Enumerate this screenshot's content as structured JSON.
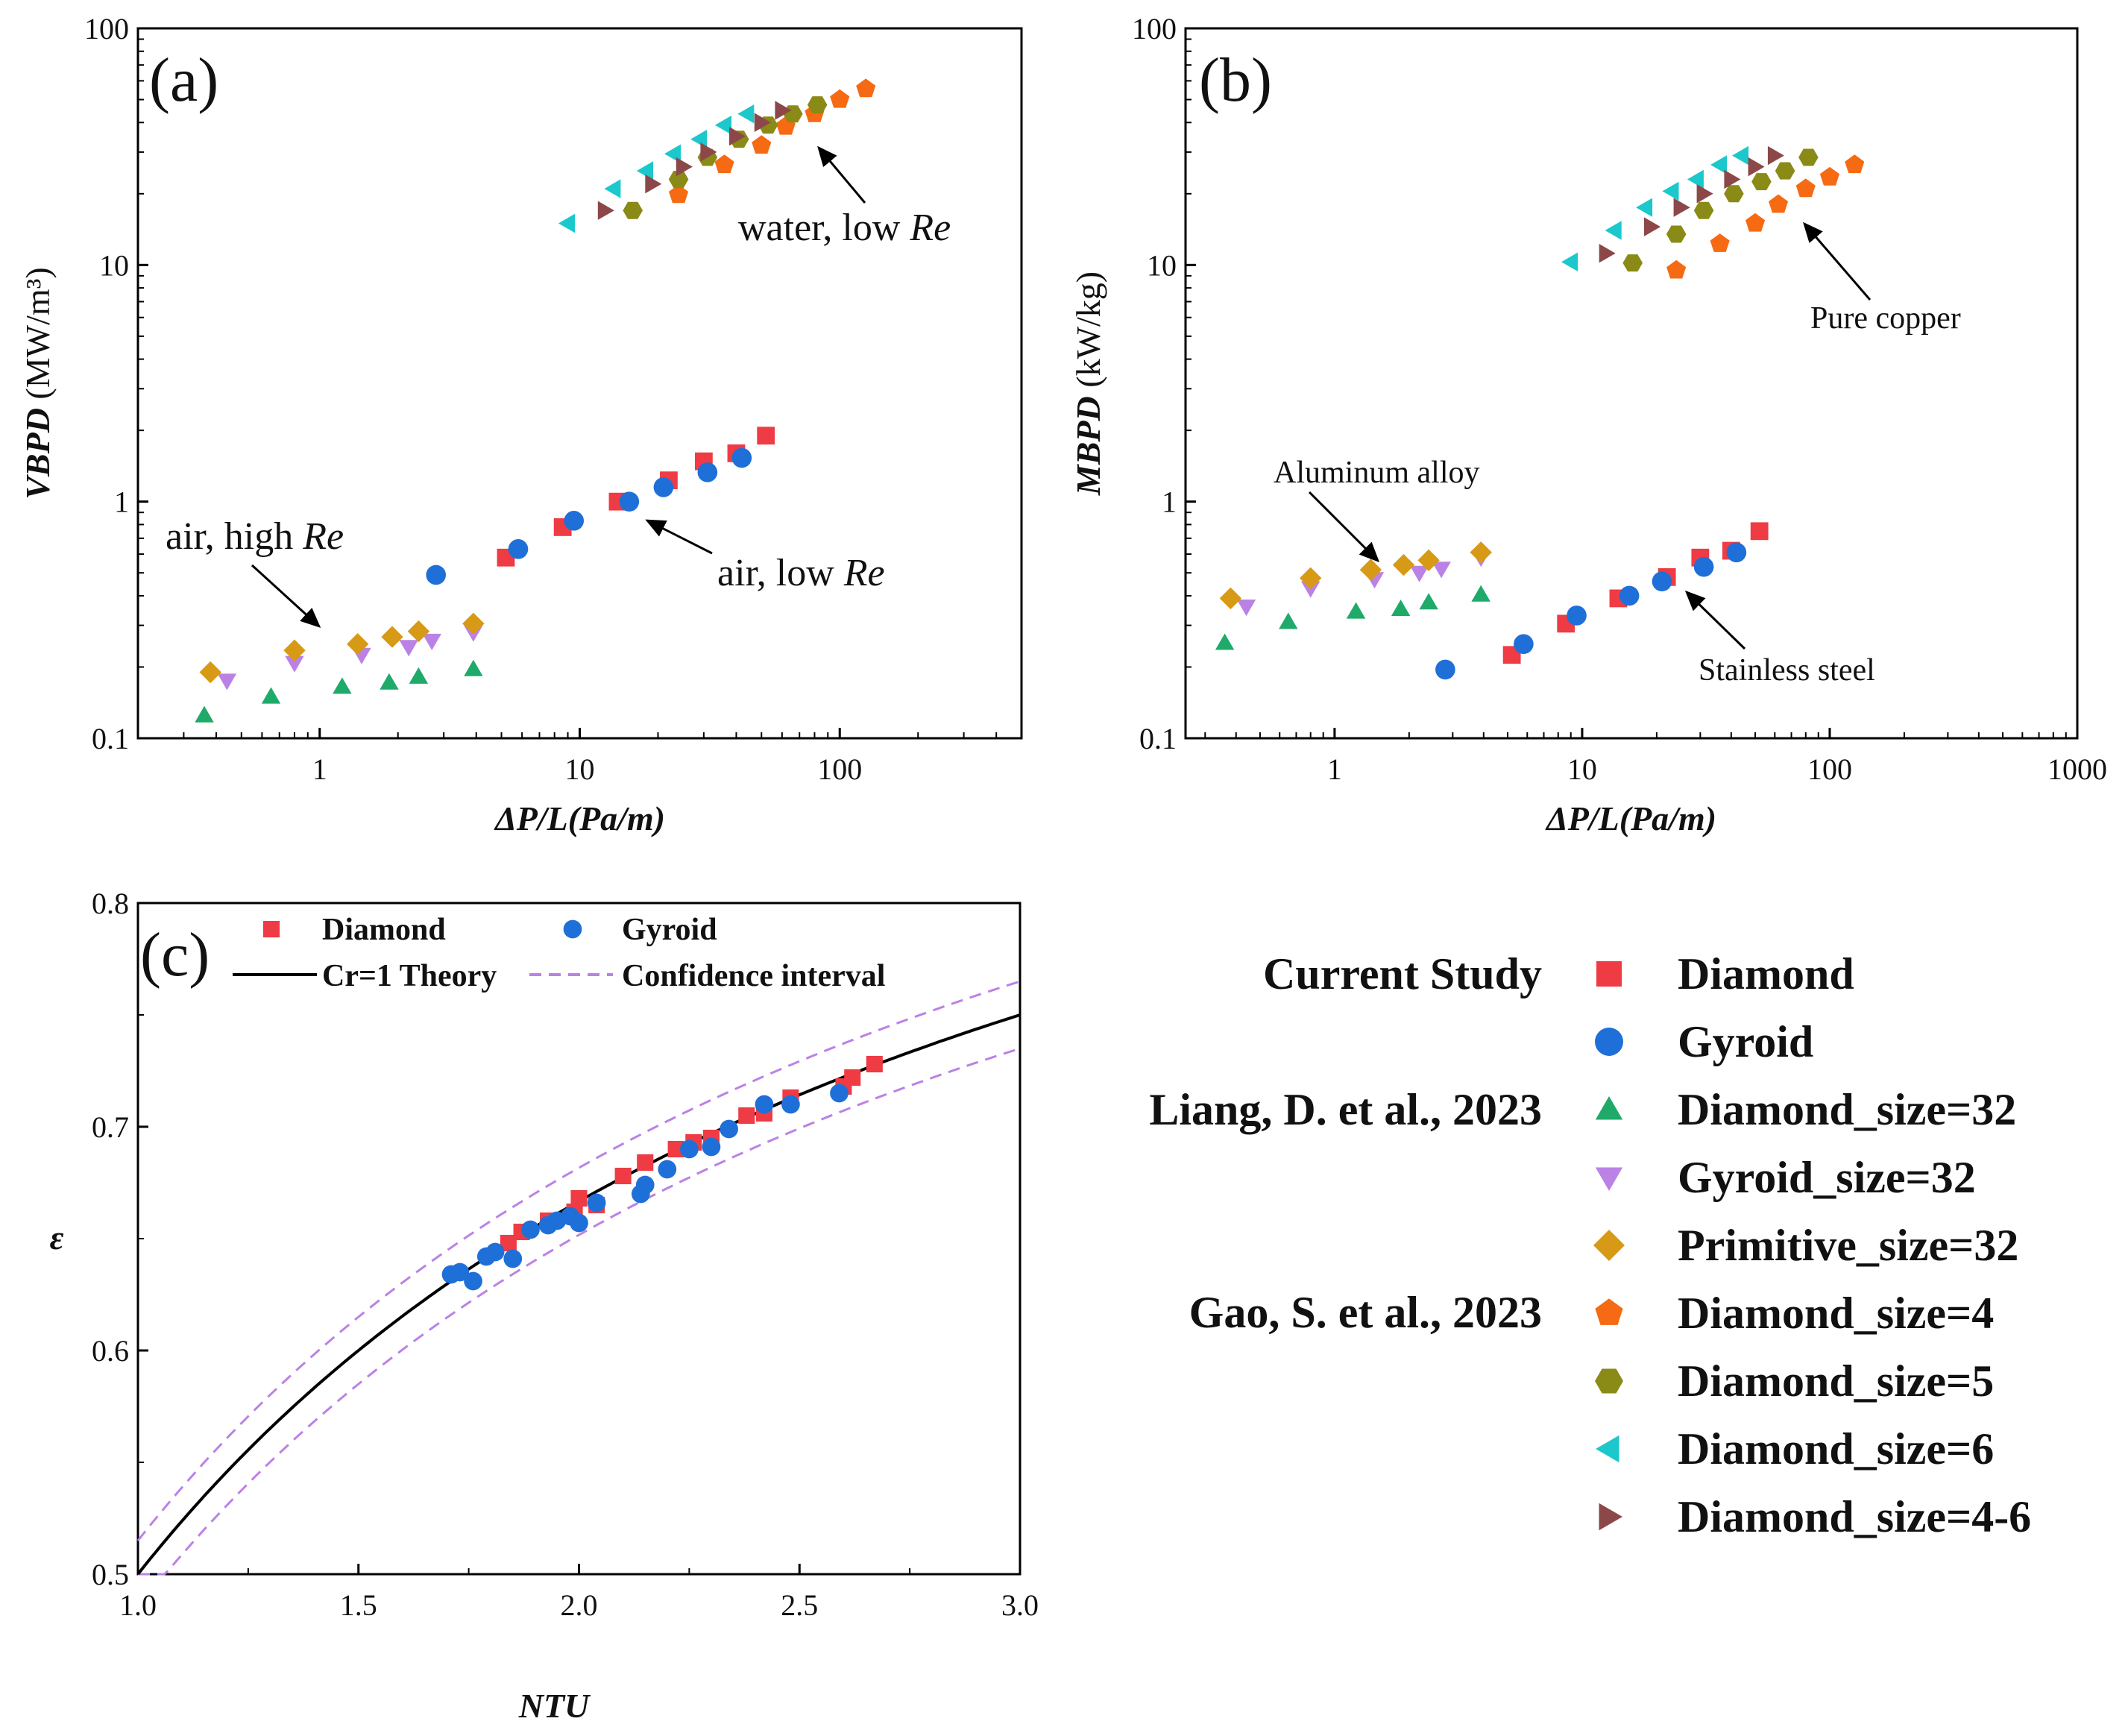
{
  "colors": {
    "Diamond": "#ef3b44",
    "Gyroid": "#1f6fd8",
    "Diamond_size=32": "#1faa6a",
    "Gyroid_size=32": "#bb82e6",
    "Primitive_size=32": "#d79a16",
    "Diamond_size=4": "#f56a12",
    "Diamond_size=5": "#8a8a16",
    "Diamond_size=6": "#1bc8cc",
    "Diamond_size=4-6": "#8c4848",
    "theory": "#000000",
    "confidence": "#bb82e6"
  },
  "markers": {
    "Diamond": "square",
    "Gyroid": "circle",
    "Diamond_size=32": "triangle-up",
    "Gyroid_size=32": "triangle-down",
    "Primitive_size=32": "diamond",
    "Diamond_size=4": "pentagon",
    "Diamond_size=5": "hexagon",
    "Diamond_size=6": "triangle-left",
    "Diamond_size=4-6": "triangle-right"
  },
  "chart_data": [
    {
      "id": "a",
      "type": "scatter",
      "panel_label": "(a)",
      "xscale": "log",
      "yscale": "log",
      "xlim": [
        0.2,
        500
      ],
      "ylim": [
        0.1,
        100
      ],
      "xticks": [
        1,
        10,
        100
      ],
      "xtick_labels": [
        "1",
        "10",
        "100"
      ],
      "yticks": [
        0.1,
        1,
        10,
        100
      ],
      "ytick_labels": [
        "0.1",
        "1",
        "10",
        "100"
      ],
      "xlabel": "ΔP/L(Pa/m)",
      "ylabel_bold": "VBPD",
      "ylabel_unit": "(MW/m³)",
      "annotations": [
        {
          "text": "water, low ",
          "italic": "Re"
        },
        {
          "text": "air, low ",
          "italic": "Re"
        },
        {
          "text": "air, high ",
          "italic": "Re"
        }
      ],
      "series": [
        {
          "name": "Diamond",
          "points": [
            [
              5.2,
              0.58
            ],
            [
              8.6,
              0.78
            ],
            [
              14,
              1.0
            ],
            [
              22,
              1.23
            ],
            [
              30,
              1.48
            ],
            [
              40,
              1.6
            ],
            [
              52,
              1.9
            ]
          ]
        },
        {
          "name": "Gyroid",
          "points": [
            [
              2.8,
              0.49
            ],
            [
              5.8,
              0.63
            ],
            [
              9.5,
              0.83
            ],
            [
              15.5,
              1.0
            ],
            [
              21,
              1.15
            ],
            [
              31,
              1.33
            ],
            [
              42,
              1.53
            ]
          ]
        },
        {
          "name": "Diamond_size=32",
          "points": [
            [
              0.36,
              0.125
            ],
            [
              0.65,
              0.15
            ],
            [
              1.22,
              0.165
            ],
            [
              1.85,
              0.172
            ],
            [
              2.4,
              0.182
            ],
            [
              3.9,
              0.196
            ]
          ]
        },
        {
          "name": "Gyroid_size=32",
          "points": [
            [
              0.44,
              0.175
            ],
            [
              0.8,
              0.208
            ],
            [
              1.45,
              0.225
            ],
            [
              2.2,
              0.243
            ],
            [
              2.7,
              0.258
            ],
            [
              3.9,
              0.28
            ]
          ]
        },
        {
          "name": "Primitive_size=32",
          "points": [
            [
              0.38,
              0.19
            ],
            [
              0.8,
              0.235
            ],
            [
              1.4,
              0.25
            ],
            [
              1.9,
              0.268
            ],
            [
              2.4,
              0.283
            ],
            [
              3.9,
              0.305
            ]
          ]
        },
        {
          "name": "Diamond_size=4",
          "points": [
            [
              24,
              19.8
            ],
            [
              36,
              26.5
            ],
            [
              50,
              32
            ],
            [
              62,
              38.5
            ],
            [
              80,
              43.5
            ],
            [
              100,
              50
            ],
            [
              126,
              55.5
            ]
          ]
        },
        {
          "name": "Diamond_size=5",
          "points": [
            [
              16,
              17
            ],
            [
              24,
              23
            ],
            [
              31,
              28.5
            ],
            [
              41,
              34
            ],
            [
              53,
              39
            ],
            [
              66,
              43.5
            ],
            [
              82,
              47.5
            ]
          ]
        },
        {
          "name": "Diamond_size=6",
          "points": [
            [
              9,
              15
            ],
            [
              13.5,
              21
            ],
            [
              18,
              25
            ],
            [
              23,
              29.5
            ],
            [
              29,
              34
            ],
            [
              36,
              39
            ],
            [
              44,
              43.5
            ]
          ]
        },
        {
          "name": "Diamond_size=4-6",
          "points": [
            [
              12.5,
              17
            ],
            [
              19,
              22
            ],
            [
              25,
              26
            ],
            [
              31,
              30
            ],
            [
              40,
              35
            ],
            [
              50,
              40
            ],
            [
              60,
              45
            ]
          ]
        }
      ]
    },
    {
      "id": "b",
      "type": "scatter",
      "panel_label": "(b)",
      "xscale": "log",
      "yscale": "log",
      "xlim": [
        0.25,
        1000
      ],
      "ylim": [
        0.1,
        100
      ],
      "xticks": [
        1,
        10,
        100,
        1000
      ],
      "xtick_labels": [
        "1",
        "10",
        "100",
        "1000"
      ],
      "yticks": [
        0.1,
        1,
        10,
        100
      ],
      "ytick_labels": [
        "0.1",
        "1",
        "10",
        "100"
      ],
      "xlabel": "ΔP/L(Pa/m)",
      "ylabel_bold": "MBPD",
      "ylabel_unit": "(kW/kg)",
      "annotations": [
        {
          "text": "Pure copper"
        },
        {
          "text": "Aluminum alloy"
        },
        {
          "text": "Stainless steel"
        }
      ],
      "series": [
        {
          "name": "Diamond",
          "points": [
            [
              5.2,
              0.225
            ],
            [
              8.6,
              0.305
            ],
            [
              14,
              0.39
            ],
            [
              22,
              0.48
            ],
            [
              30,
              0.58
            ],
            [
              40,
              0.62
            ],
            [
              52,
              0.75
            ]
          ]
        },
        {
          "name": "Gyroid",
          "points": [
            [
              2.8,
              0.195
            ],
            [
              5.8,
              0.25
            ],
            [
              9.5,
              0.33
            ],
            [
              15.5,
              0.4
            ],
            [
              21,
              0.46
            ],
            [
              31,
              0.53
            ],
            [
              42,
              0.61
            ]
          ]
        },
        {
          "name": "Diamond_size=32",
          "points": [
            [
              0.36,
              0.253
            ],
            [
              0.65,
              0.31
            ],
            [
              1.22,
              0.343
            ],
            [
              1.85,
              0.352
            ],
            [
              2.4,
              0.375
            ],
            [
              3.9,
              0.405
            ]
          ]
        },
        {
          "name": "Gyroid_size=32",
          "points": [
            [
              0.44,
              0.36
            ],
            [
              0.8,
              0.43
            ],
            [
              1.45,
              0.47
            ],
            [
              2.2,
              0.5
            ],
            [
              2.7,
              0.52
            ],
            [
              3.9,
              0.58
            ]
          ]
        },
        {
          "name": "Primitive_size=32",
          "points": [
            [
              0.38,
              0.39
            ],
            [
              0.8,
              0.475
            ],
            [
              1.4,
              0.515
            ],
            [
              1.9,
              0.54
            ],
            [
              2.4,
              0.565
            ],
            [
              3.9,
              0.61
            ]
          ]
        },
        {
          "name": "Diamond_size=4",
          "points": [
            [
              24,
              9.5
            ],
            [
              36,
              12.3
            ],
            [
              50,
              15
            ],
            [
              62,
              18
            ],
            [
              80,
              21
            ],
            [
              100,
              23.5
            ],
            [
              126,
              26.5
            ]
          ]
        },
        {
          "name": "Diamond_size=5",
          "points": [
            [
              16,
              10.2
            ],
            [
              24,
              13.5
            ],
            [
              31,
              17
            ],
            [
              41,
              20
            ],
            [
              53,
              22.5
            ],
            [
              66,
              25
            ],
            [
              82,
              28.5
            ]
          ]
        },
        {
          "name": "Diamond_size=6",
          "points": [
            [
              9,
              10.3
            ],
            [
              13.5,
              14
            ],
            [
              18,
              17.5
            ],
            [
              23,
              20.5
            ],
            [
              29,
              23
            ],
            [
              36,
              26.5
            ],
            [
              44,
              29
            ]
          ]
        },
        {
          "name": "Diamond_size=4-6",
          "points": [
            [
              12.5,
              11.2
            ],
            [
              19,
              14.5
            ],
            [
              25,
              17.5
            ],
            [
              31,
              20
            ],
            [
              40,
              23
            ],
            [
              50,
              26
            ],
            [
              60,
              29
            ]
          ]
        }
      ]
    },
    {
      "id": "c",
      "type": "scatter",
      "panel_label": "(c)",
      "xscale": "linear",
      "yscale": "linear",
      "xlim": [
        1.0,
        3.0
      ],
      "ylim": [
        0.5,
        0.8
      ],
      "xticks": [
        1.0,
        1.5,
        2.0,
        2.5,
        3.0
      ],
      "xtick_labels": [
        "1.0",
        "1.5",
        "2.0",
        "2.5",
        "3.0"
      ],
      "yticks": [
        0.5,
        0.6,
        0.7,
        0.8
      ],
      "ytick_labels": [
        "0.5",
        "0.6",
        "0.7",
        "0.8"
      ],
      "xlabel": "NTU",
      "ylabel": "ε",
      "legend": [
        "Diamond",
        "Gyroid",
        "Cr=1 Theory",
        "Confidence interval"
      ],
      "theory": {
        "name": "Cr=1 Theory",
        "formula": "NTU/(1+NTU)"
      },
      "confidence_band": {
        "name": "Confidence interval",
        "offset": 0.015
      },
      "series": [
        {
          "name": "Diamond",
          "points": [
            [
              1.84,
              0.648
            ],
            [
              1.87,
              0.653
            ],
            [
              1.93,
              0.658
            ],
            [
              1.99,
              0.662
            ],
            [
              2.0,
              0.668
            ],
            [
              2.04,
              0.665
            ],
            [
              2.1,
              0.678
            ],
            [
              2.15,
              0.684
            ],
            [
              2.22,
              0.69
            ],
            [
              2.26,
              0.693
            ],
            [
              2.3,
              0.695
            ],
            [
              2.38,
              0.705
            ],
            [
              2.42,
              0.706
            ],
            [
              2.48,
              0.713
            ],
            [
              2.6,
              0.718
            ],
            [
              2.62,
              0.722
            ],
            [
              2.67,
              0.728
            ]
          ]
        },
        {
          "name": "Gyroid",
          "points": [
            [
              1.71,
              0.634
            ],
            [
              1.73,
              0.635
            ],
            [
              1.76,
              0.631
            ],
            [
              1.79,
              0.642
            ],
            [
              1.81,
              0.644
            ],
            [
              1.85,
              0.641
            ],
            [
              1.89,
              0.654
            ],
            [
              1.93,
              0.656
            ],
            [
              1.95,
              0.658
            ],
            [
              1.98,
              0.66
            ],
            [
              2.0,
              0.657
            ],
            [
              2.04,
              0.666
            ],
            [
              2.14,
              0.67
            ],
            [
              2.15,
              0.674
            ],
            [
              2.2,
              0.681
            ],
            [
              2.25,
              0.69
            ],
            [
              2.3,
              0.691
            ],
            [
              2.34,
              0.699
            ],
            [
              2.42,
              0.71
            ],
            [
              2.48,
              0.71
            ],
            [
              2.59,
              0.715
            ]
          ]
        }
      ]
    }
  ],
  "legend_main": {
    "groups": [
      {
        "label": "Current Study",
        "entries": [
          "Diamond",
          "Gyroid"
        ]
      },
      {
        "label": "Liang, D. et al., 2023",
        "entries": [
          "Diamond_size=32",
          "Gyroid_size=32",
          "Primitive_size=32"
        ]
      },
      {
        "label": "Gao, S. et al., 2023",
        "entries": [
          "Diamond_size=4",
          "Diamond_size=5",
          "Diamond_size=6",
          "Diamond_size=4-6"
        ]
      }
    ]
  }
}
